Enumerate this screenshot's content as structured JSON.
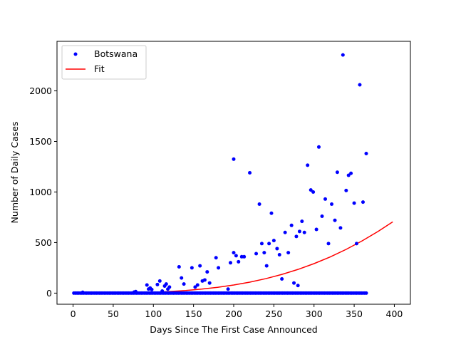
{
  "chart_data": {
    "type": "scatter",
    "title": "",
    "xlabel": "Days Since The First Case Announced",
    "ylabel": "Number of Daily Cases",
    "xlim": [
      -20,
      420
    ],
    "ylim": [
      -110,
      2490
    ],
    "xticks": [
      0,
      50,
      100,
      150,
      200,
      250,
      300,
      350,
      400
    ],
    "yticks": [
      0,
      500,
      1000,
      1500,
      2000
    ],
    "grid": false,
    "legend_position": "top-left",
    "series": [
      {
        "name": "Botswana",
        "kind": "scatter",
        "color": "#0000ff",
        "zero_days_range": [
          1,
          366
        ],
        "points": [
          [
            12,
            8
          ],
          [
            76,
            10
          ],
          [
            78,
            15
          ],
          [
            92,
            80
          ],
          [
            94,
            40
          ],
          [
            96,
            50
          ],
          [
            98,
            35
          ],
          [
            105,
            85
          ],
          [
            108,
            120
          ],
          [
            111,
            20
          ],
          [
            114,
            70
          ],
          [
            116,
            90
          ],
          [
            118,
            40
          ],
          [
            120,
            60
          ],
          [
            132,
            260
          ],
          [
            135,
            150
          ],
          [
            138,
            90
          ],
          [
            148,
            250
          ],
          [
            152,
            60
          ],
          [
            155,
            80
          ],
          [
            158,
            270
          ],
          [
            161,
            120
          ],
          [
            164,
            130
          ],
          [
            167,
            210
          ],
          [
            170,
            100
          ],
          [
            178,
            350
          ],
          [
            181,
            250
          ],
          [
            193,
            40
          ],
          [
            196,
            300
          ],
          [
            200,
            400
          ],
          [
            200,
            1325
          ],
          [
            203,
            370
          ],
          [
            206,
            310
          ],
          [
            210,
            360
          ],
          [
            213,
            360
          ],
          [
            220,
            1190
          ],
          [
            228,
            390
          ],
          [
            232,
            880
          ],
          [
            235,
            490
          ],
          [
            238,
            400
          ],
          [
            241,
            270
          ],
          [
            244,
            490
          ],
          [
            247,
            790
          ],
          [
            250,
            520
          ],
          [
            254,
            440
          ],
          [
            257,
            380
          ],
          [
            260,
            140
          ],
          [
            264,
            600
          ],
          [
            268,
            400
          ],
          [
            272,
            670
          ],
          [
            275,
            100
          ],
          [
            278,
            560
          ],
          [
            280,
            75
          ],
          [
            282,
            610
          ],
          [
            285,
            710
          ],
          [
            288,
            600
          ],
          [
            292,
            1265
          ],
          [
            296,
            1020
          ],
          [
            299,
            1000
          ],
          [
            303,
            630
          ],
          [
            306,
            1445
          ],
          [
            310,
            760
          ],
          [
            314,
            930
          ],
          [
            318,
            490
          ],
          [
            322,
            880
          ],
          [
            326,
            720
          ],
          [
            329,
            1195
          ],
          [
            333,
            645
          ],
          [
            336,
            2355
          ],
          [
            340,
            1015
          ],
          [
            343,
            1165
          ],
          [
            346,
            1185
          ],
          [
            350,
            890
          ],
          [
            353,
            490
          ],
          [
            357,
            2060
          ],
          [
            361,
            900
          ],
          [
            365,
            1380
          ]
        ]
      },
      {
        "name": "Fit",
        "kind": "line",
        "color": "#ff0000",
        "points": [
          [
            1,
            0
          ],
          [
            20,
            0.1
          ],
          [
            40,
            0.6
          ],
          [
            60,
            1.9
          ],
          [
            80,
            4.5
          ],
          [
            100,
            8.9
          ],
          [
            120,
            15.8
          ],
          [
            140,
            25.8
          ],
          [
            160,
            39.4
          ],
          [
            180,
            57.2
          ],
          [
            200,
            80.1
          ],
          [
            220,
            108.6
          ],
          [
            240,
            143.3
          ],
          [
            260,
            184.9
          ],
          [
            280,
            234.2
          ],
          [
            300,
            291.7
          ],
          [
            320,
            357.5
          ],
          [
            340,
            432.5
          ],
          [
            360,
            517
          ],
          [
            380,
            611
          ],
          [
            398,
            705
          ]
        ]
      }
    ]
  }
}
